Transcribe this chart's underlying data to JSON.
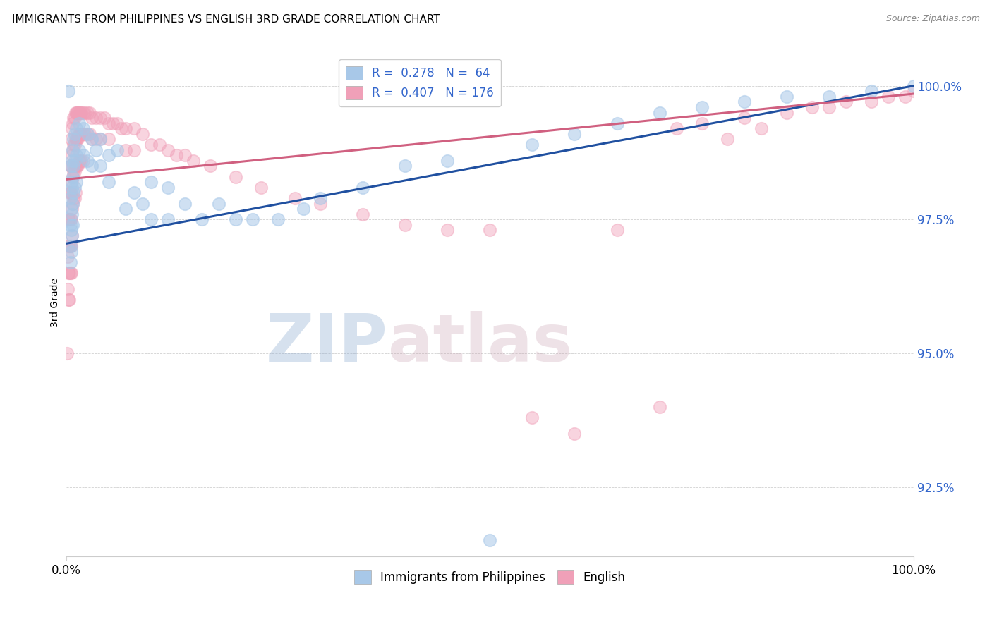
{
  "title": "IMMIGRANTS FROM PHILIPPINES VS ENGLISH 3RD GRADE CORRELATION CHART",
  "source": "Source: ZipAtlas.com",
  "ylabel": "3rd Grade",
  "ytick_values": [
    92.5,
    95.0,
    97.5,
    100.0
  ],
  "xlim": [
    0.0,
    100.0
  ],
  "ylim": [
    91.2,
    100.7
  ],
  "color_blue": "#A8C8E8",
  "color_pink": "#F0A0B8",
  "line_blue": "#2050A0",
  "line_pink": "#D06080",
  "watermark_zip": "ZIP",
  "watermark_atlas": "atlas",
  "blue_line_x": [
    0.0,
    100.0
  ],
  "blue_line_y": [
    97.05,
    100.0
  ],
  "pink_line_x": [
    0.0,
    100.0
  ],
  "pink_line_y": [
    98.25,
    99.85
  ],
  "blue_scatter": [
    [
      0.3,
      99.9
    ],
    [
      0.5,
      98.5
    ],
    [
      0.5,
      97.9
    ],
    [
      0.5,
      97.4
    ],
    [
      0.5,
      97.0
    ],
    [
      0.5,
      96.7
    ],
    [
      0.6,
      98.2
    ],
    [
      0.6,
      97.7
    ],
    [
      0.6,
      97.3
    ],
    [
      0.6,
      96.9
    ],
    [
      0.7,
      98.6
    ],
    [
      0.7,
      98.1
    ],
    [
      0.7,
      97.6
    ],
    [
      0.7,
      97.2
    ],
    [
      0.8,
      98.8
    ],
    [
      0.8,
      98.3
    ],
    [
      0.8,
      97.8
    ],
    [
      0.8,
      97.4
    ],
    [
      0.9,
      99.0
    ],
    [
      0.9,
      98.5
    ],
    [
      0.9,
      98.0
    ],
    [
      1.0,
      99.1
    ],
    [
      1.0,
      98.6
    ],
    [
      1.0,
      98.1
    ],
    [
      1.2,
      99.2
    ],
    [
      1.2,
      98.7
    ],
    [
      1.2,
      98.2
    ],
    [
      1.5,
      99.3
    ],
    [
      1.5,
      98.8
    ],
    [
      2.0,
      99.2
    ],
    [
      2.0,
      98.7
    ],
    [
      2.5,
      99.1
    ],
    [
      2.5,
      98.6
    ],
    [
      3.0,
      99.0
    ],
    [
      3.0,
      98.5
    ],
    [
      3.5,
      98.8
    ],
    [
      4.0,
      99.0
    ],
    [
      4.0,
      98.5
    ],
    [
      5.0,
      98.7
    ],
    [
      5.0,
      98.2
    ],
    [
      6.0,
      98.8
    ],
    [
      7.0,
      97.7
    ],
    [
      8.0,
      98.0
    ],
    [
      9.0,
      97.8
    ],
    [
      10.0,
      97.5
    ],
    [
      10.0,
      98.2
    ],
    [
      12.0,
      98.1
    ],
    [
      12.0,
      97.5
    ],
    [
      14.0,
      97.8
    ],
    [
      16.0,
      97.5
    ],
    [
      18.0,
      97.8
    ],
    [
      20.0,
      97.5
    ],
    [
      22.0,
      97.5
    ],
    [
      25.0,
      97.5
    ],
    [
      28.0,
      97.7
    ],
    [
      30.0,
      97.9
    ],
    [
      35.0,
      98.1
    ],
    [
      40.0,
      98.5
    ],
    [
      45.0,
      98.6
    ],
    [
      50.0,
      91.5
    ],
    [
      55.0,
      98.9
    ],
    [
      60.0,
      99.1
    ],
    [
      65.0,
      99.3
    ],
    [
      70.0,
      99.5
    ],
    [
      75.0,
      99.6
    ],
    [
      80.0,
      99.7
    ],
    [
      85.0,
      99.8
    ],
    [
      90.0,
      99.8
    ],
    [
      95.0,
      99.9
    ],
    [
      100.0,
      100.0
    ]
  ],
  "pink_scatter": [
    [
      0.1,
      95.0
    ],
    [
      0.2,
      96.8
    ],
    [
      0.2,
      96.2
    ],
    [
      0.3,
      97.5
    ],
    [
      0.3,
      97.0
    ],
    [
      0.3,
      96.5
    ],
    [
      0.3,
      96.0
    ],
    [
      0.4,
      98.0
    ],
    [
      0.4,
      97.5
    ],
    [
      0.4,
      97.0
    ],
    [
      0.4,
      96.5
    ],
    [
      0.4,
      96.0
    ],
    [
      0.5,
      98.5
    ],
    [
      0.5,
      98.0
    ],
    [
      0.5,
      97.5
    ],
    [
      0.5,
      97.0
    ],
    [
      0.5,
      96.5
    ],
    [
      0.6,
      99.0
    ],
    [
      0.6,
      98.5
    ],
    [
      0.6,
      98.0
    ],
    [
      0.6,
      97.5
    ],
    [
      0.6,
      97.0
    ],
    [
      0.6,
      96.5
    ],
    [
      0.7,
      99.2
    ],
    [
      0.7,
      98.7
    ],
    [
      0.7,
      98.2
    ],
    [
      0.7,
      97.7
    ],
    [
      0.7,
      97.2
    ],
    [
      0.8,
      99.3
    ],
    [
      0.8,
      98.8
    ],
    [
      0.8,
      98.3
    ],
    [
      0.8,
      97.8
    ],
    [
      0.9,
      99.4
    ],
    [
      0.9,
      98.9
    ],
    [
      0.9,
      98.4
    ],
    [
      0.9,
      97.9
    ],
    [
      1.0,
      99.4
    ],
    [
      1.0,
      98.9
    ],
    [
      1.0,
      98.4
    ],
    [
      1.0,
      97.9
    ],
    [
      1.1,
      99.5
    ],
    [
      1.1,
      99.0
    ],
    [
      1.1,
      98.5
    ],
    [
      1.1,
      98.0
    ],
    [
      1.2,
      99.5
    ],
    [
      1.2,
      99.0
    ],
    [
      1.2,
      98.5
    ],
    [
      1.3,
      99.5
    ],
    [
      1.3,
      99.0
    ],
    [
      1.3,
      98.5
    ],
    [
      1.4,
      99.5
    ],
    [
      1.4,
      99.0
    ],
    [
      1.4,
      98.5
    ],
    [
      1.5,
      99.5
    ],
    [
      1.5,
      99.1
    ],
    [
      1.5,
      98.6
    ],
    [
      1.6,
      99.5
    ],
    [
      1.6,
      99.1
    ],
    [
      1.6,
      98.6
    ],
    [
      1.7,
      99.5
    ],
    [
      1.7,
      99.1
    ],
    [
      1.8,
      99.5
    ],
    [
      1.8,
      99.1
    ],
    [
      1.8,
      98.6
    ],
    [
      2.0,
      99.5
    ],
    [
      2.0,
      99.1
    ],
    [
      2.0,
      98.6
    ],
    [
      2.2,
      99.5
    ],
    [
      2.2,
      99.1
    ],
    [
      2.5,
      99.5
    ],
    [
      2.5,
      99.1
    ],
    [
      2.8,
      99.5
    ],
    [
      2.8,
      99.1
    ],
    [
      3.0,
      99.4
    ],
    [
      3.0,
      99.0
    ],
    [
      3.5,
      99.4
    ],
    [
      3.5,
      99.0
    ],
    [
      4.0,
      99.4
    ],
    [
      4.0,
      99.0
    ],
    [
      4.5,
      99.4
    ],
    [
      5.0,
      99.3
    ],
    [
      5.0,
      99.0
    ],
    [
      5.5,
      99.3
    ],
    [
      6.0,
      99.3
    ],
    [
      6.5,
      99.2
    ],
    [
      7.0,
      99.2
    ],
    [
      7.0,
      98.8
    ],
    [
      8.0,
      99.2
    ],
    [
      8.0,
      98.8
    ],
    [
      9.0,
      99.1
    ],
    [
      10.0,
      98.9
    ],
    [
      11.0,
      98.9
    ],
    [
      12.0,
      98.8
    ],
    [
      13.0,
      98.7
    ],
    [
      14.0,
      98.7
    ],
    [
      15.0,
      98.6
    ],
    [
      17.0,
      98.5
    ],
    [
      20.0,
      98.3
    ],
    [
      23.0,
      98.1
    ],
    [
      27.0,
      97.9
    ],
    [
      30.0,
      97.8
    ],
    [
      35.0,
      97.6
    ],
    [
      40.0,
      97.4
    ],
    [
      45.0,
      97.3
    ],
    [
      50.0,
      97.3
    ],
    [
      55.0,
      93.8
    ],
    [
      60.0,
      93.5
    ],
    [
      65.0,
      97.3
    ],
    [
      70.0,
      94.0
    ],
    [
      72.0,
      99.2
    ],
    [
      75.0,
      99.3
    ],
    [
      78.0,
      99.0
    ],
    [
      80.0,
      99.4
    ],
    [
      82.0,
      99.2
    ],
    [
      85.0,
      99.5
    ],
    [
      88.0,
      99.6
    ],
    [
      90.0,
      99.6
    ],
    [
      92.0,
      99.7
    ],
    [
      95.0,
      99.7
    ],
    [
      97.0,
      99.8
    ],
    [
      99.0,
      99.8
    ],
    [
      100.0,
      99.9
    ]
  ]
}
